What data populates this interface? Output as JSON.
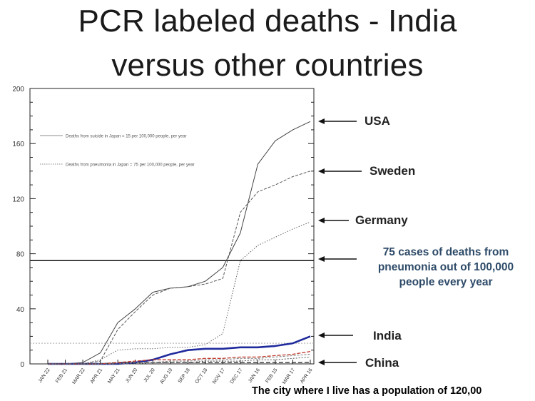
{
  "title": {
    "line1": "PCR labeled deaths - India",
    "line2": "versus other countries"
  },
  "caption": "The city where I live has a population of 120,00",
  "chart_data": {
    "type": "line",
    "ylim": [
      0,
      200
    ],
    "yticks": [
      0,
      40,
      80,
      120,
      160,
      200
    ],
    "categories": [
      "JAN 22",
      "FEB 21",
      "MAR 22",
      "APR 21",
      "MAY 21",
      "JUN 20",
      "JUL 20",
      "AUG 19",
      "SEP 18",
      "OCT 18",
      "NOV 17",
      "DEC 17",
      "JAN 16",
      "FEB 15",
      "MAR 17",
      "APR 16"
    ],
    "legend": [
      "Deaths from suicide in Japan = 15 per 100,000 people, per year",
      "Deaths from pneumonia in Japan = 75 per 100,000 people, per year"
    ],
    "reference_lines": [
      {
        "value": 75,
        "note": "75 cases of deaths from pneumonia out of 100,000 people every year"
      },
      {
        "value": 15
      }
    ],
    "series": [
      {
        "name": "USA",
        "color": "#444444",
        "values": [
          0,
          0,
          1,
          8,
          30,
          40,
          52,
          55,
          56,
          60,
          70,
          95,
          145,
          162,
          170,
          176
        ]
      },
      {
        "name": "Sweden",
        "color": "#555555",
        "values": [
          0,
          0,
          0,
          2,
          25,
          38,
          50,
          55,
          56,
          58,
          62,
          110,
          125,
          130,
          136,
          140
        ]
      },
      {
        "name": "Germany",
        "color": "#666666",
        "values": [
          0,
          0,
          0,
          3,
          10,
          11,
          11,
          12,
          12,
          14,
          22,
          75,
          86,
          92,
          98,
          103
        ]
      },
      {
        "name": "India",
        "color": "#1f2a9c",
        "values": [
          0,
          0,
          0,
          0,
          0,
          1,
          3,
          7,
          10,
          11,
          11,
          12,
          12,
          13,
          15,
          20
        ]
      },
      {
        "name": "China",
        "color": "#333333",
        "values": [
          0,
          0,
          0,
          0,
          1,
          1,
          1,
          1,
          1,
          1,
          1,
          1,
          1,
          1,
          1,
          1
        ]
      },
      {
        "name": "",
        "color": "#c0392b",
        "values": [
          0,
          0,
          0,
          0,
          1,
          2,
          3,
          3,
          3,
          4,
          4,
          5,
          5,
          6,
          7,
          9
        ]
      },
      {
        "name": "",
        "color": "#8a8a8a",
        "values": [
          0,
          0,
          0,
          0,
          0,
          1,
          1,
          2,
          2,
          3,
          3,
          4,
          4,
          5,
          6,
          7
        ]
      },
      {
        "name": "",
        "color": "#555555",
        "values": [
          0,
          0,
          0,
          0,
          0,
          0,
          1,
          1,
          1,
          2,
          2,
          2,
          3,
          3,
          4,
          5
        ]
      }
    ]
  }
}
